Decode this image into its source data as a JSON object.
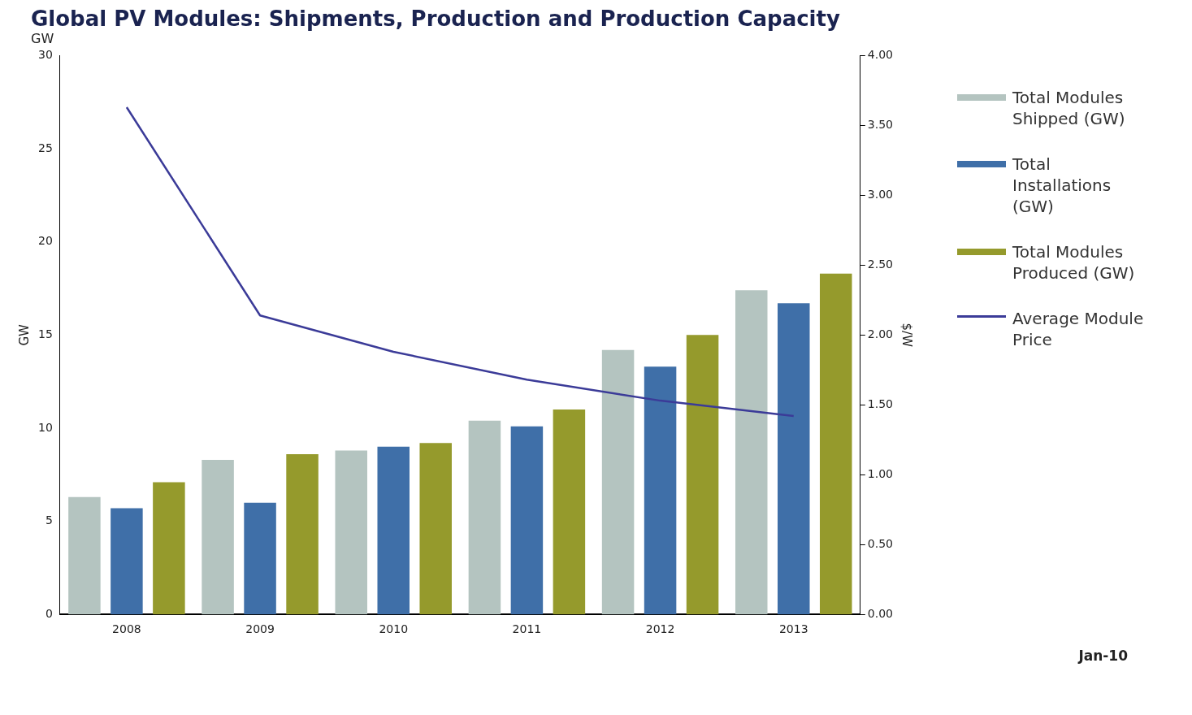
{
  "chart_data": {
    "type": "bar",
    "title": "Global PV Modules: Shipments, Production and Production Capacity",
    "subtitle": "GW",
    "ylabel": "GW",
    "y2label": "$/W",
    "categories": [
      "2008",
      "2009",
      "2010",
      "2011",
      "2012",
      "2013"
    ],
    "series": [
      {
        "name": "Total Modules Shipped (GW)",
        "color": "#b4c4c0",
        "values": [
          6.3,
          8.3,
          8.8,
          10.4,
          14.2,
          17.4
        ]
      },
      {
        "name": "Total Installations (GW)",
        "color": "#3f6fa8",
        "values": [
          5.7,
          6.0,
          9.0,
          10.1,
          13.3,
          16.7
        ]
      },
      {
        "name": "Total Modules Produced (GW)",
        "color": "#959a2c",
        "values": [
          7.1,
          8.6,
          9.2,
          11.0,
          15.0,
          18.3
        ]
      },
      {
        "name": "Average Module Price",
        "type": "line",
        "axis": "y2",
        "color": "#3b3b98",
        "values": [
          3.63,
          2.14,
          1.88,
          1.68,
          1.53,
          1.42
        ]
      }
    ],
    "ylim": [
      0,
      30
    ],
    "yticks": [
      0,
      5,
      10,
      15,
      20,
      25,
      30
    ],
    "y2lim": [
      0,
      4
    ],
    "y2ticks": [
      {
        "value": 0,
        "label": "0.00"
      },
      {
        "value": 0.5,
        "label": "0.50"
      },
      {
        "value": 1,
        "label": "1.00"
      },
      {
        "value": 1.5,
        "label": "1.50"
      },
      {
        "value": 2,
        "label": "2.00"
      },
      {
        "value": 2.5,
        "label": "2.50"
      },
      {
        "value": 3,
        "label": "3.00"
      },
      {
        "value": 3.5,
        "label": "3.50"
      },
      {
        "value": 4,
        "label": "4.00"
      }
    ],
    "grid": false,
    "legend": "right",
    "marker": "none",
    "line_style": "solid",
    "annotations": [
      "Jan-10"
    ]
  }
}
